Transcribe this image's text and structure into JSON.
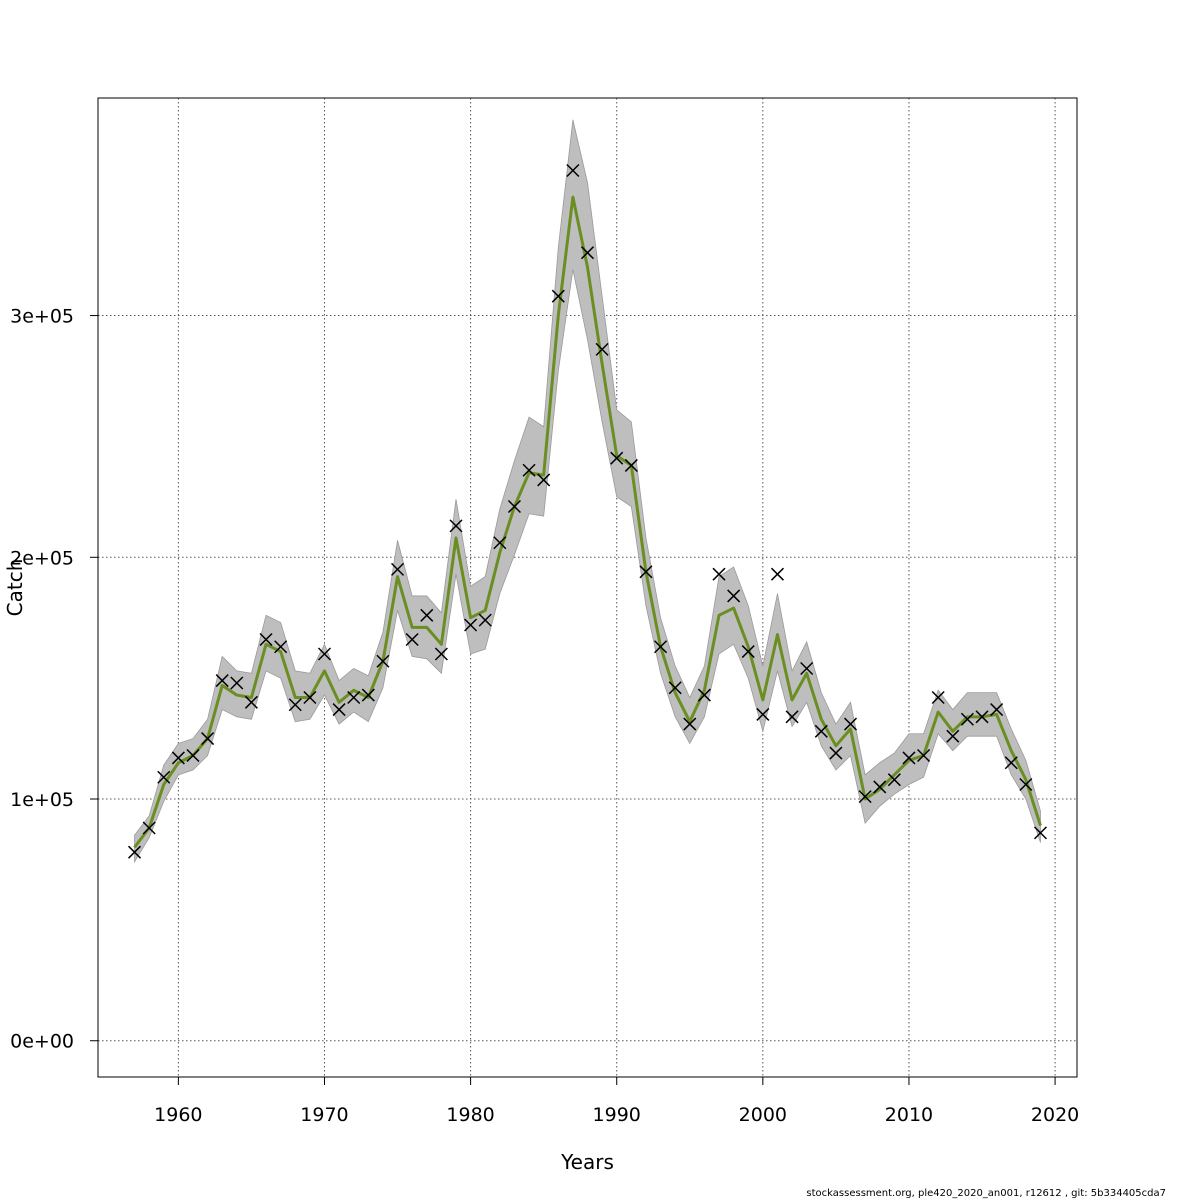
{
  "chart_data": {
    "type": "line",
    "title": "",
    "xlabel": "Years",
    "ylabel": "Catch",
    "xlim": [
      1954.5,
      2021.5
    ],
    "ylim": [
      -15000,
      390000
    ],
    "x_ticks": [
      1960,
      1970,
      1980,
      1990,
      2000,
      2010,
      2020
    ],
    "y_ticks": [
      0,
      100000,
      200000,
      300000
    ],
    "x_tick_labels": [
      "1960",
      "1970",
      "1980",
      "1990",
      "2000",
      "2010",
      "2020"
    ],
    "y_tick_labels": [
      "0e+00",
      "1e+05",
      "2e+05",
      "3e+05"
    ],
    "grid": true,
    "band_color": "#bebebe",
    "line_color": "#6b8e23",
    "years": [
      1957,
      1958,
      1959,
      1960,
      1961,
      1962,
      1963,
      1964,
      1965,
      1966,
      1967,
      1968,
      1969,
      1970,
      1971,
      1972,
      1973,
      1974,
      1975,
      1976,
      1977,
      1978,
      1979,
      1980,
      1981,
      1982,
      1983,
      1984,
      1985,
      1986,
      1987,
      1988,
      1989,
      1990,
      1991,
      1992,
      1993,
      1994,
      1995,
      1996,
      1997,
      1998,
      1999,
      2000,
      2001,
      2002,
      2003,
      2004,
      2005,
      2006,
      2007,
      2008,
      2009,
      2010,
      2011,
      2012,
      2013,
      2014,
      2015,
      2016,
      2017,
      2018,
      2019
    ],
    "observed": [
      78000,
      88000,
      109000,
      117000,
      118000,
      125000,
      149000,
      148000,
      140000,
      166000,
      163000,
      139000,
      142000,
      160000,
      137000,
      142000,
      143000,
      157000,
      195000,
      166000,
      176000,
      160000,
      213000,
      172000,
      174000,
      206000,
      221000,
      236000,
      232000,
      308000,
      360000,
      326000,
      286000,
      241000,
      238000,
      194000,
      163000,
      146000,
      131000,
      143000,
      193000,
      184000,
      161000,
      135000,
      193000,
      134000,
      154000,
      128000,
      119000,
      131000,
      101000,
      105000,
      108000,
      117000,
      118000,
      142000,
      126000,
      133000,
      134000,
      137000,
      115000,
      106000,
      86000
    ],
    "fitted": [
      80000,
      88000,
      106000,
      115000,
      118000,
      125000,
      147000,
      143000,
      142000,
      164000,
      161000,
      142000,
      142000,
      153000,
      140000,
      145000,
      142000,
      157000,
      192000,
      171000,
      171000,
      164000,
      208000,
      175000,
      178000,
      202000,
      221000,
      235000,
      234000,
      300000,
      349000,
      320000,
      280000,
      242000,
      238000,
      194000,
      163000,
      144000,
      132000,
      145000,
      176000,
      179000,
      163000,
      141000,
      168000,
      141000,
      152000,
      133000,
      122000,
      129000,
      100000,
      104000,
      110000,
      116000,
      118000,
      136000,
      128000,
      134000,
      134000,
      135000,
      120000,
      108000,
      89000
    ],
    "lower": [
      74000,
      84000,
      99000,
      110000,
      112000,
      118000,
      137000,
      134000,
      133000,
      153000,
      150000,
      132000,
      133000,
      143000,
      131000,
      136000,
      132000,
      146000,
      178000,
      159000,
      158000,
      152000,
      193000,
      160000,
      162000,
      185000,
      201000,
      218000,
      217000,
      277000,
      319000,
      290000,
      256000,
      225000,
      221000,
      180000,
      152000,
      134000,
      123000,
      134000,
      160000,
      164000,
      150000,
      128000,
      153000,
      130000,
      140000,
      122000,
      112000,
      118000,
      90000,
      97000,
      102000,
      106000,
      109000,
      127000,
      120000,
      126000,
      126000,
      126000,
      110000,
      100000,
      82000
    ],
    "upper": [
      85000,
      93000,
      114000,
      123000,
      125000,
      133000,
      159000,
      153000,
      152000,
      176000,
      173000,
      153000,
      152000,
      164000,
      149000,
      154000,
      151000,
      169000,
      207000,
      184000,
      184000,
      177000,
      224000,
      188000,
      192000,
      220000,
      240000,
      258000,
      254000,
      328000,
      381000,
      355000,
      308000,
      261000,
      256000,
      208000,
      175000,
      155000,
      142000,
      155000,
      192000,
      196000,
      180000,
      155000,
      185000,
      153000,
      165000,
      144000,
      131000,
      140000,
      110000,
      115000,
      119000,
      127000,
      127000,
      145000,
      137000,
      144000,
      144000,
      144000,
      129000,
      116000,
      95000
    ]
  },
  "footer_text": "stockassessment.org, ple420_2020_an001, r12612 , git: 5b334405cda7"
}
